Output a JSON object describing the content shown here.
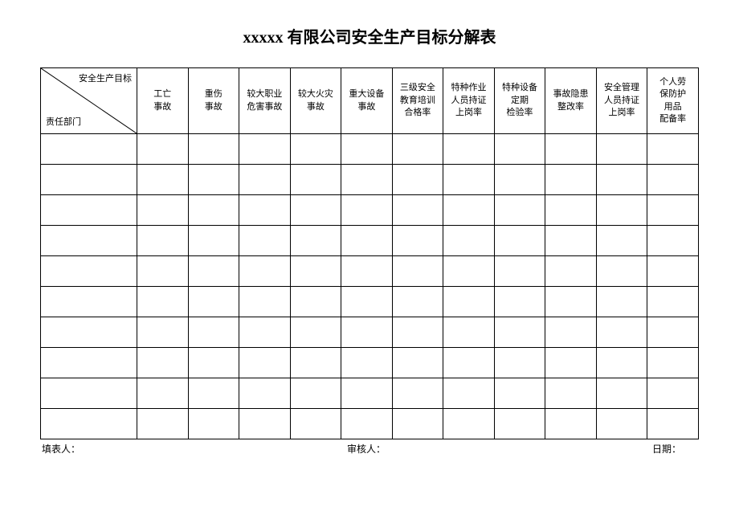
{
  "title": "xxxxx 有限公司安全生产目标分解表",
  "table": {
    "diagonal_top": "安全生产目标",
    "diagonal_bottom": "责任部门",
    "columns": [
      "工亡\n事故",
      "重伤\n事故",
      "较大职业\n危害事故",
      "较大火灾\n事故",
      "重大设备\n事故",
      "三级安全\n教育培训\n合格率",
      "特种作业\n人员持证\n上岗率",
      "特种设备\n定期\n检验率",
      "事故隐患\n整改率",
      "安全管理\n人员持证\n上岗率",
      "个人劳\n保防护\n用品\n配备率"
    ],
    "num_rows": 10,
    "first_col_width": 120,
    "border_color": "#000000",
    "background": "#ffffff"
  },
  "footer": {
    "preparer": "填表人：",
    "reviewer": "审核人：",
    "date": "日期："
  }
}
